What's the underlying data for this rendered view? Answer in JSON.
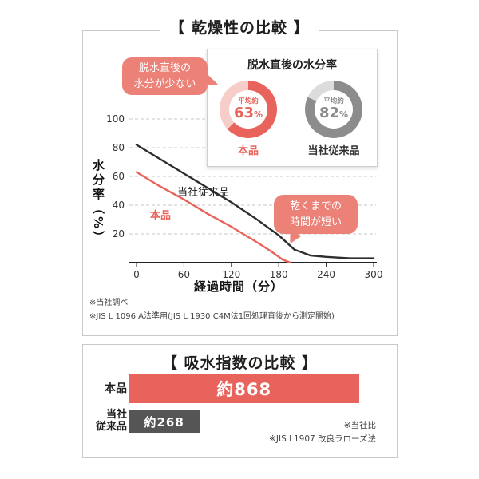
{
  "top_section": {
    "title": "【 乾燥性の比較 】",
    "bubble1": {
      "lines": [
        "脱水直後の",
        "水分が少ない"
      ]
    },
    "bubble2": {
      "lines": [
        "乾くまでの",
        "時間が短い"
      ]
    },
    "inset": {
      "donuts": [
        {
          "prefix": "平均約",
          "number": "63",
          "unit": "%",
          "caption": "本品"
        },
        {
          "prefix": "平均約",
          "number": "82",
          "unit": "%",
          "caption": "当社従来品"
        }
      ],
      "tints": [
        "#f6cdc9",
        "#dcdcdc"
      ],
      "label_colors": [
        "#e8635b",
        "#333333"
      ]
    },
    "footnotes": [
      "※当社調べ",
      "※JIS L 1096 A法準用(JIS L 1930 C4M法1回処理直後から測定開始)"
    ]
  },
  "bottom_section": {
    "title": "【 吸水指数の比較 】",
    "bars": [
      {
        "lines": [
          "本品"
        ]
      },
      {
        "lines": [
          "当社",
          "従来品"
        ]
      }
    ],
    "footnotes": [
      "※当社比",
      "※JIS L1907 改良ラローズ法"
    ]
  },
  "colors": {
    "accent_red": "#e8635b",
    "bubble_salmon": "#ec8178",
    "dark_gray_bar": "#555555",
    "donut_gray": "#8c8c8c",
    "grid": "#c9c9c9"
  },
  "chart_data": [
    {
      "type": "line",
      "title": "乾燥性の比較",
      "xlabel": "経過時間（分）",
      "ylabel": "水分率（%）",
      "xlim": [
        0,
        300
      ],
      "ylim": [
        0,
        100
      ],
      "x_ticks": [
        0,
        60,
        120,
        180,
        240,
        300
      ],
      "y_ticks": [
        20,
        40,
        60,
        80,
        100
      ],
      "grid": "horizontal-dashed",
      "legend": "inline-labels",
      "series": [
        {
          "name": "当社従来品",
          "color": "#2e2e2e",
          "x": [
            0,
            30,
            60,
            90,
            120,
            150,
            180,
            200,
            220,
            240,
            270,
            300
          ],
          "y": [
            82,
            72,
            62,
            52,
            42,
            31,
            19,
            9,
            5,
            4,
            3,
            3
          ]
        },
        {
          "name": "本品",
          "color": "#e8635b",
          "x": [
            0,
            30,
            60,
            90,
            120,
            150,
            170,
            185,
            195
          ],
          "y": [
            63,
            53,
            44,
            34,
            25,
            15,
            8,
            2,
            0
          ]
        }
      ]
    },
    {
      "type": "bar",
      "title": "吸水指数の比較",
      "orientation": "horizontal",
      "categories": [
        "本品",
        "当社従来品"
      ],
      "values": [
        868,
        268
      ],
      "value_labels": [
        "約868",
        "約268"
      ],
      "colors": [
        "#e8635b",
        "#555555"
      ],
      "axis_max": 900
    },
    {
      "type": "donut",
      "title": "脱水直後の水分率",
      "unit": "%",
      "series": [
        {
          "label": "本品",
          "value": 63,
          "color": "#e8635b"
        },
        {
          "label": "当社従来品",
          "value": 82,
          "color": "#8c8c8c"
        }
      ]
    }
  ]
}
